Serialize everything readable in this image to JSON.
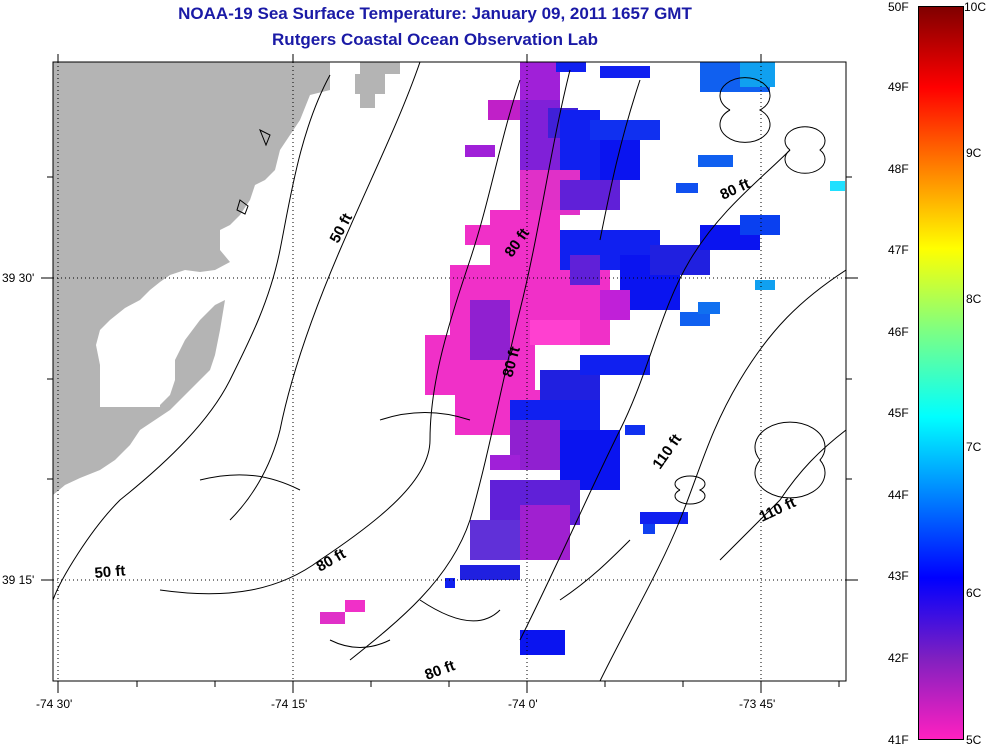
{
  "header": {
    "title": "NOAA-19 Sea Surface Temperature:  January 09, 2011 1657 GMT",
    "subtitle": "Rutgers Coastal Ocean Observation Lab"
  },
  "axes": {
    "lon_ticks": [
      "-74 30'",
      "-74 15'",
      "-74 0'",
      "-73 45'"
    ],
    "lat_ticks": [
      "39 30'",
      "39 15'"
    ]
  },
  "contour_labels": [
    "50 ft",
    "50 ft",
    "80 ft",
    "80 ft",
    "80 ft",
    "80 ft",
    "80 ft",
    "110 ft",
    "110 ft"
  ],
  "colorbar": {
    "fahrenheit": [
      "50F",
      "49F",
      "48F",
      "47F",
      "46F",
      "45F",
      "44F",
      "43F",
      "42F",
      "41F"
    ],
    "celsius": [
      "10C",
      "9C",
      "8C",
      "7C",
      "6C",
      "5C"
    ],
    "colors": [
      "#800000",
      "#ff0000",
      "#ff8000",
      "#ffff00",
      "#80ff80",
      "#00ffff",
      "#0080ff",
      "#0000ff",
      "#8020c0",
      "#ff20c0"
    ]
  },
  "colors": {
    "land": "#b4b4b4",
    "title": "#1a1aa6",
    "warm_water": "#0a14f0",
    "cool_water": "#f030c8"
  }
}
